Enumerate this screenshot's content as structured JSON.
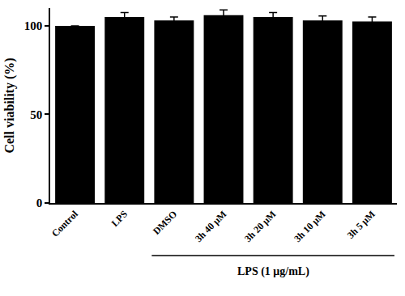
{
  "chart_data": {
    "type": "bar",
    "y_label": "Cell viability (%)",
    "categories": [
      "Control",
      "LPS",
      "DMSO",
      "3h 40 μM",
      "3h 20 μM",
      "3h 10 μM",
      "3h 5 μM"
    ],
    "values": [
      100,
      105,
      103,
      106,
      105,
      103,
      102.5
    ],
    "errors": [
      0,
      2.5,
      2,
      3,
      2.5,
      2.5,
      2.5
    ],
    "color": "#000000",
    "ylim": [
      0,
      110
    ],
    "yticks": [
      0,
      50,
      100
    ],
    "grid": false,
    "annotations": [
      {
        "text": "LPS (1 μg/mL)",
        "from": "DMSO",
        "to": "3h 5 μM"
      }
    ]
  }
}
